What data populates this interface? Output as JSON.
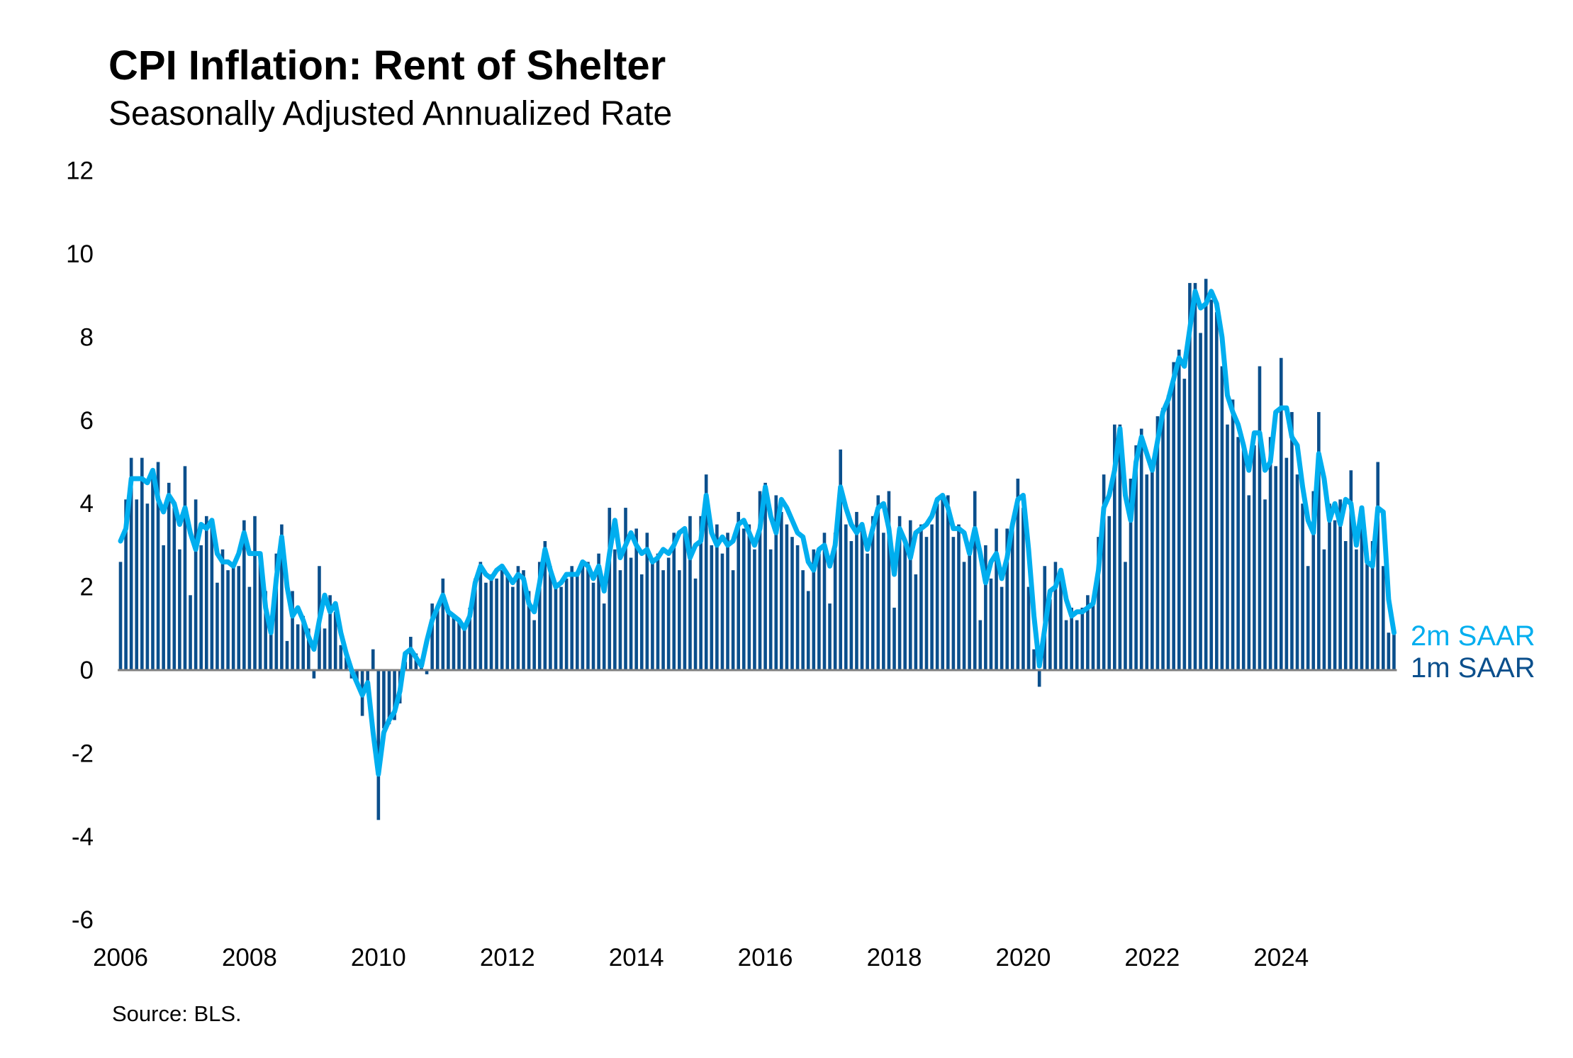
{
  "chart_data": {
    "type": "bar+line",
    "title": "CPI Inflation: Rent of Shelter",
    "subtitle": "Seasonally Adjusted Annualized Rate",
    "source": "Source: BLS.",
    "x_start": "2006-01",
    "x_end": "2025-10",
    "x_ticks": [
      "2006",
      "2008",
      "2010",
      "2012",
      "2014",
      "2016",
      "2018",
      "2020",
      "2022",
      "2024"
    ],
    "y_ticks": [
      "12",
      "10",
      "8",
      "6",
      "4",
      "2",
      "0",
      "-2",
      "-4",
      "-6"
    ],
    "ylim": [
      -6,
      12
    ],
    "grid": false,
    "legend_placement": "right, at line end",
    "colors": {
      "1m SAAR": "#0B4F8C",
      "2m SAAR": "#00AEEF",
      "zero_line": "#808080"
    },
    "series": [
      {
        "name": "1m SAAR",
        "type": "bar",
        "values": [
          2.6,
          4.1,
          5.1,
          4.1,
          5.1,
          4.0,
          4.6,
          5.0,
          3.0,
          4.5,
          3.9,
          2.9,
          4.9,
          1.8,
          4.1,
          3.0,
          3.7,
          3.5,
          2.1,
          2.9,
          2.4,
          2.5,
          2.5,
          3.6,
          2.0,
          3.7,
          2.8,
          1.9,
          0.9,
          2.8,
          3.5,
          0.7,
          1.9,
          1.1,
          1.3,
          1.0,
          -0.2,
          2.5,
          1.0,
          1.8,
          1.4,
          0.6,
          0.3,
          -0.2,
          -0.3,
          -1.1,
          -0.5,
          0.5,
          -3.6,
          -1.4,
          -1.3,
          -1.2,
          -0.8,
          0.2,
          0.8,
          0.4,
          0.2,
          -0.1,
          1.6,
          1.5,
          2.2,
          1.4,
          1.3,
          1.2,
          1.1,
          1.5,
          2.2,
          2.6,
          2.1,
          2.3,
          2.2,
          2.4,
          2.3,
          2.0,
          2.5,
          2.4,
          1.9,
          1.2,
          2.6,
          3.1,
          2.5,
          2.0,
          2.0,
          2.2,
          2.5,
          2.3,
          2.6,
          2.6,
          2.1,
          2.8,
          1.6,
          3.9,
          2.9,
          2.4,
          3.9,
          2.7,
          3.4,
          2.3,
          3.3,
          2.6,
          2.8,
          2.4,
          2.7,
          3.3,
          2.4,
          3.4,
          3.7,
          2.2,
          3.7,
          4.7,
          3.0,
          3.5,
          2.8,
          3.3,
          2.4,
          3.8,
          3.4,
          3.5,
          2.9,
          4.3,
          4.5,
          2.9,
          4.2,
          3.8,
          3.5,
          3.2,
          3.0,
          2.4,
          1.9,
          2.9,
          2.8,
          3.3,
          1.6,
          3.3,
          5.3,
          3.5,
          3.1,
          3.8,
          3.4,
          2.8,
          3.7,
          4.2,
          3.3,
          4.3,
          1.5,
          3.7,
          3.1,
          3.6,
          2.3,
          3.5,
          3.2,
          3.5,
          4.0,
          4.1,
          4.2,
          3.2,
          3.5,
          2.6,
          3.0,
          4.3,
          1.2,
          3.0,
          2.2,
          3.4,
          2.0,
          3.4,
          3.6,
          4.6,
          3.9,
          2.0,
          0.5,
          -0.4,
          2.5,
          1.7,
          2.6,
          2.3,
          1.2,
          1.5,
          1.2,
          1.5,
          1.8,
          1.6,
          3.2,
          4.7,
          3.7,
          5.9,
          5.9,
          2.6,
          4.6,
          5.4,
          5.8,
          4.7,
          5.0,
          6.1,
          6.3,
          6.6,
          7.4,
          7.7,
          7.0,
          9.3,
          9.3,
          8.1,
          9.4,
          8.9,
          8.6,
          7.3,
          5.9,
          6.5,
          5.6,
          5.3,
          4.2,
          5.4,
          7.3,
          4.1,
          5.6,
          4.9,
          7.5,
          5.1,
          6.2,
          4.7,
          4.0,
          2.5,
          4.3,
          6.2,
          2.9,
          4.0,
          3.6,
          4.1,
          3.1,
          4.8,
          2.9,
          3.9,
          2.6,
          3.1,
          5.0,
          2.5,
          0.9,
          0.9
        ]
      },
      {
        "name": "2m SAAR",
        "type": "line",
        "values": [
          3.1,
          3.4,
          4.6,
          4.6,
          4.6,
          4.5,
          4.8,
          4.1,
          3.8,
          4.2,
          4.0,
          3.5,
          3.9,
          3.3,
          2.9,
          3.5,
          3.4,
          3.6,
          2.8,
          2.6,
          2.6,
          2.5,
          2.8,
          3.3,
          2.8,
          2.8,
          2.8,
          1.5,
          0.9,
          2.2,
          3.2,
          2.0,
          1.3,
          1.5,
          1.2,
          0.8,
          0.5,
          1.2,
          1.8,
          1.4,
          1.6,
          0.9,
          0.4,
          0.0,
          -0.3,
          -0.6,
          -0.3,
          -1.5,
          -2.5,
          -1.5,
          -1.2,
          -1.0,
          -0.5,
          0.4,
          0.5,
          0.3,
          0.1,
          0.7,
          1.2,
          1.5,
          1.8,
          1.4,
          1.3,
          1.2,
          1.0,
          1.3,
          2.1,
          2.5,
          2.3,
          2.2,
          2.4,
          2.5,
          2.3,
          2.1,
          2.3,
          2.2,
          1.6,
          1.4,
          2.1,
          2.9,
          2.4,
          2.0,
          2.1,
          2.3,
          2.3,
          2.3,
          2.6,
          2.5,
          2.2,
          2.5,
          1.9,
          2.8,
          3.6,
          2.7,
          3.0,
          3.3,
          3.0,
          2.8,
          2.9,
          2.6,
          2.7,
          2.9,
          2.8,
          3.0,
          3.3,
          3.4,
          2.7,
          3.0,
          3.1,
          4.2,
          3.3,
          3.0,
          3.2,
          3.0,
          3.1,
          3.5,
          3.6,
          3.3,
          3.0,
          3.4,
          4.4,
          3.7,
          3.3,
          4.1,
          3.9,
          3.6,
          3.3,
          3.2,
          2.6,
          2.4,
          2.9,
          3.0,
          2.5,
          3.0,
          4.4,
          3.9,
          3.5,
          3.3,
          3.5,
          2.9,
          3.4,
          3.9,
          4.0,
          3.4,
          2.3,
          3.4,
          3.1,
          2.7,
          3.3,
          3.4,
          3.5,
          3.7,
          4.1,
          4.2,
          3.9,
          3.4,
          3.4,
          3.3,
          2.8,
          3.4,
          2.8,
          2.1,
          2.6,
          2.8,
          2.2,
          2.7,
          3.5,
          4.1,
          4.2,
          2.9,
          1.3,
          0.1,
          1.0,
          1.9,
          2.0,
          2.4,
          1.7,
          1.3,
          1.4,
          1.4,
          1.5,
          1.6,
          2.4,
          3.9,
          4.2,
          4.8,
          5.8,
          4.2,
          3.6,
          5.0,
          5.6,
          5.2,
          4.8,
          5.5,
          6.2,
          6.5,
          7.0,
          7.5,
          7.3,
          8.2,
          9.1,
          8.7,
          8.8,
          9.1,
          8.8,
          8.0,
          6.6,
          6.2,
          5.9,
          5.4,
          4.8,
          5.7,
          5.7,
          4.8,
          5.0,
          6.2,
          6.3,
          6.3,
          5.6,
          5.4,
          4.4,
          3.6,
          3.3,
          5.2,
          4.6,
          3.6,
          4.0,
          3.5,
          4.1,
          4.0,
          3.0,
          3.9,
          2.6,
          2.5,
          3.9,
          3.8,
          1.7,
          0.9
        ]
      }
    ]
  }
}
